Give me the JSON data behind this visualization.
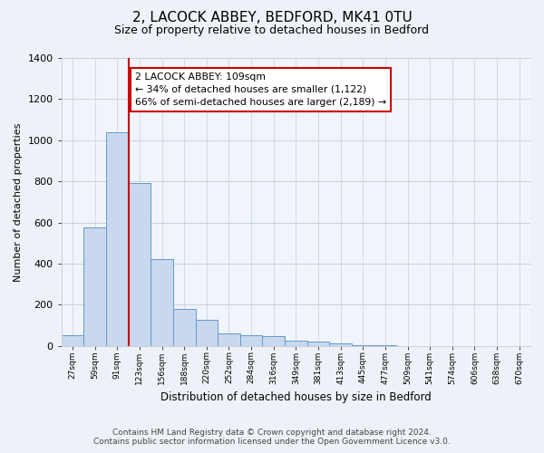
{
  "title": "2, LACOCK ABBEY, BEDFORD, MK41 0TU",
  "subtitle": "Size of property relative to detached houses in Bedford",
  "xlabel": "Distribution of detached houses by size in Bedford",
  "ylabel": "Number of detached properties",
  "bar_labels": [
    "27sqm",
    "59sqm",
    "91sqm",
    "123sqm",
    "156sqm",
    "188sqm",
    "220sqm",
    "252sqm",
    "284sqm",
    "316sqm",
    "349sqm",
    "381sqm",
    "413sqm",
    "445sqm",
    "477sqm",
    "509sqm",
    "541sqm",
    "574sqm",
    "606sqm",
    "638sqm",
    "670sqm"
  ],
  "bar_values": [
    50,
    575,
    1040,
    790,
    420,
    180,
    125,
    62,
    50,
    48,
    25,
    20,
    10,
    5,
    2,
    0,
    0,
    0,
    0,
    0,
    0
  ],
  "bar_color": "#c8d8ee",
  "bar_edge_color": "#6699cc",
  "vline_color": "#cc0000",
  "vline_bar_index": 2,
  "annotation_text": "2 LACOCK ABBEY: 109sqm\n← 34% of detached houses are smaller (1,122)\n66% of semi-detached houses are larger (2,189) →",
  "annotation_box_color": "#ffffff",
  "annotation_box_edge_color": "#cc0000",
  "ylim": [
    0,
    1400
  ],
  "yticks": [
    0,
    200,
    400,
    600,
    800,
    1000,
    1200,
    1400
  ],
  "footer_line1": "Contains HM Land Registry data © Crown copyright and database right 2024.",
  "footer_line2": "Contains public sector information licensed under the Open Government Licence v3.0.",
  "bg_color": "#eef2f8",
  "plot_bg_color": "#f0f4fb",
  "grid_color": "#c8d0e0"
}
